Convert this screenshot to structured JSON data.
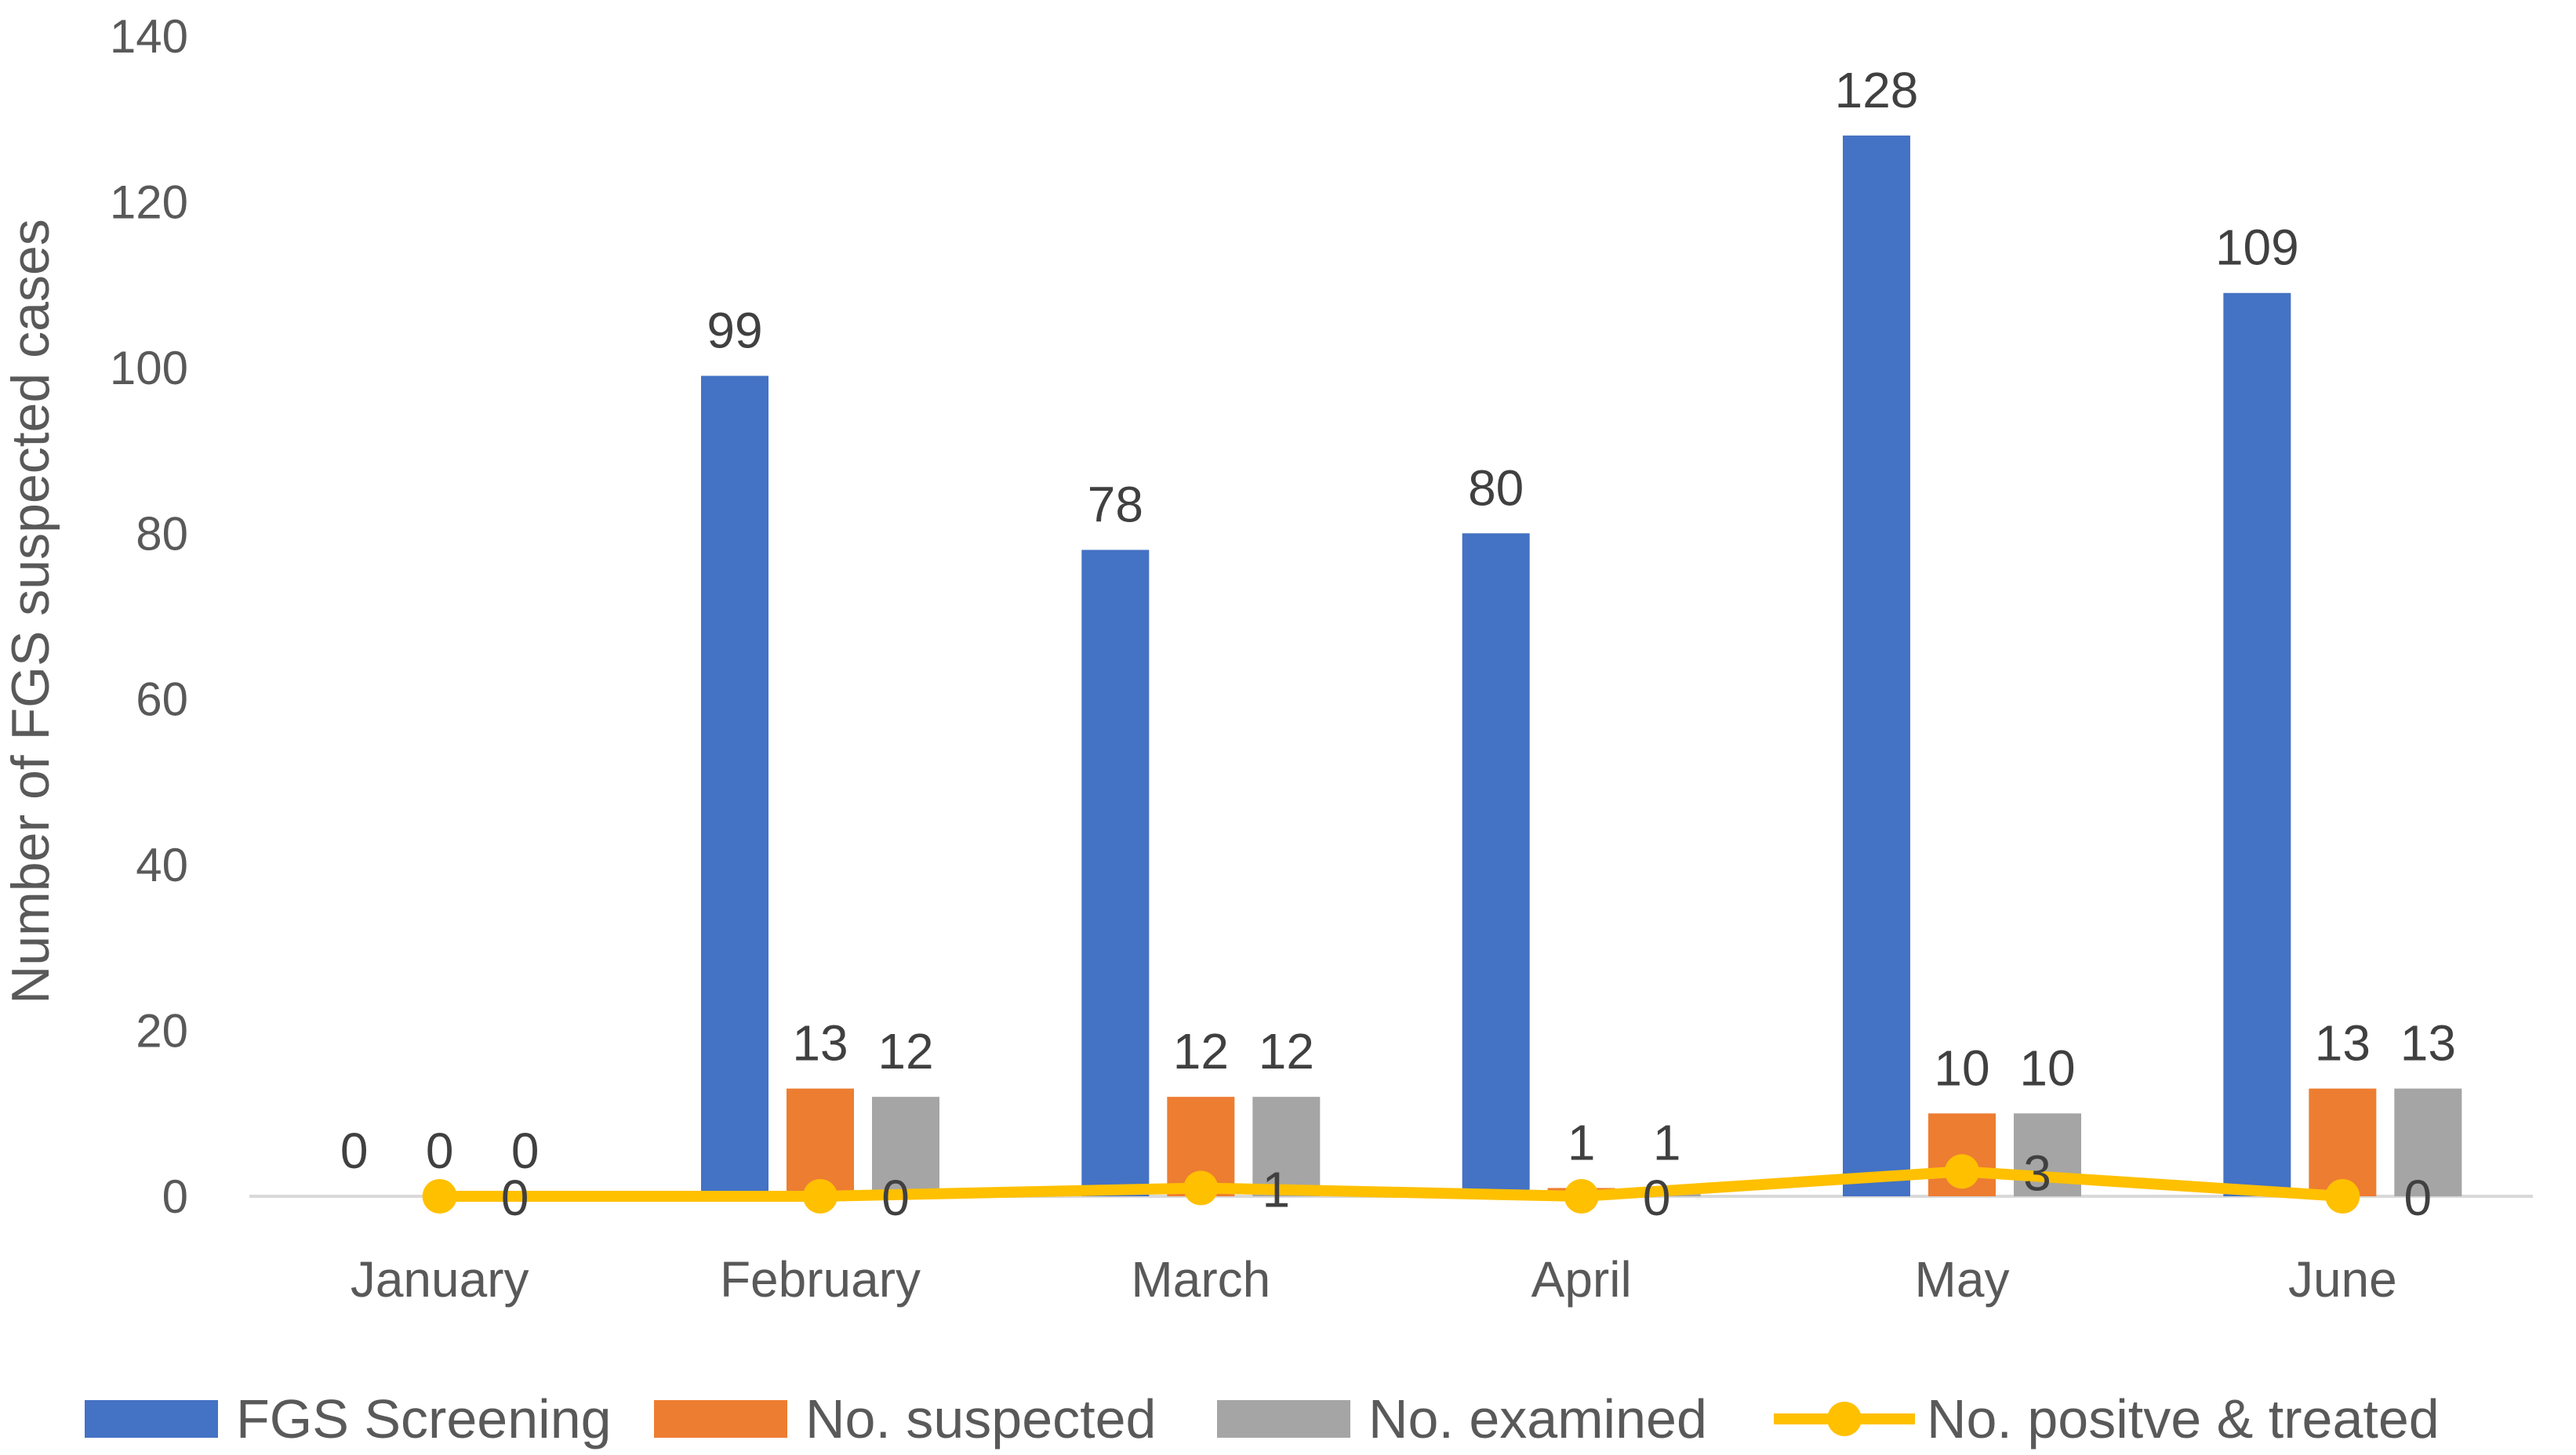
{
  "chart_data": {
    "type": "bar",
    "title": "",
    "xlabel": "",
    "ylabel": "Number of FGS suspected cases",
    "ylim": [
      0,
      140
    ],
    "yticks": [
      0,
      20,
      40,
      60,
      80,
      100,
      120,
      140
    ],
    "grid": false,
    "legend_position": "bottom",
    "categories": [
      "January",
      "February",
      "March",
      "April",
      "May",
      "June"
    ],
    "series": [
      {
        "name": "FGS Screening",
        "type": "bar",
        "color": "#4472C4",
        "values": [
          0,
          99,
          78,
          80,
          128,
          109
        ]
      },
      {
        "name": "No. suspected",
        "type": "bar",
        "color": "#ED7D31",
        "values": [
          0,
          13,
          12,
          1,
          10,
          13
        ]
      },
      {
        "name": "No. examined",
        "type": "bar",
        "color": "#A5A5A5",
        "values": [
          0,
          12,
          12,
          1,
          10,
          13
        ]
      },
      {
        "name": "No. positve & treated",
        "type": "line",
        "marker": "circle",
        "color": "#FFC000",
        "values": [
          0,
          0,
          1,
          0,
          3,
          0
        ]
      }
    ],
    "data_labels": true
  }
}
